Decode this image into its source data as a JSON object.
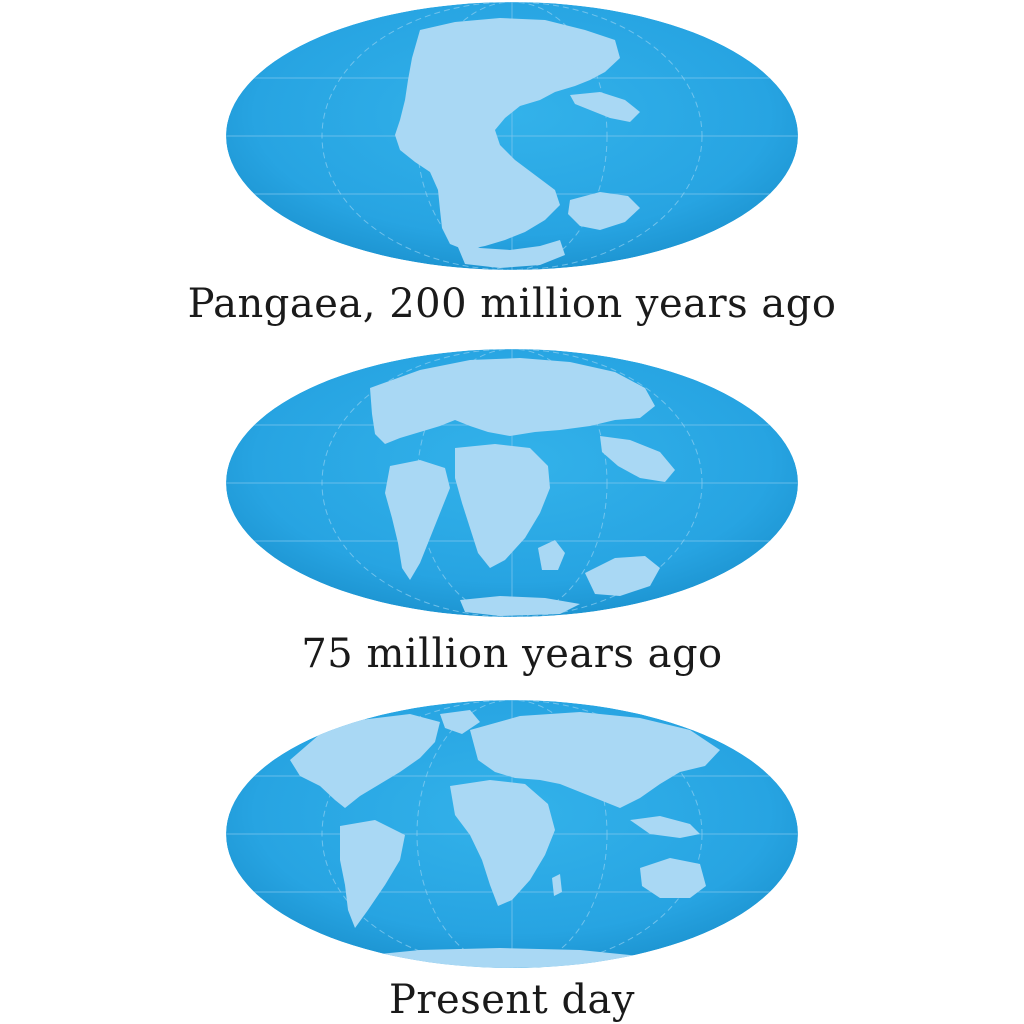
{
  "colors": {
    "ocean": "#29a7e4",
    "ocean_edge": "#1b93d1",
    "land": "#a9d8f4",
    "grid": "#7cc6ee",
    "caption_text": "#1a1a1a",
    "background": "#ffffff"
  },
  "maps": [
    {
      "id": "pangaea",
      "caption": "Pangaea, 200 million years ago"
    },
    {
      "id": "cretaceous",
      "caption": "75 million years ago"
    },
    {
      "id": "present",
      "caption": "Present day"
    }
  ]
}
